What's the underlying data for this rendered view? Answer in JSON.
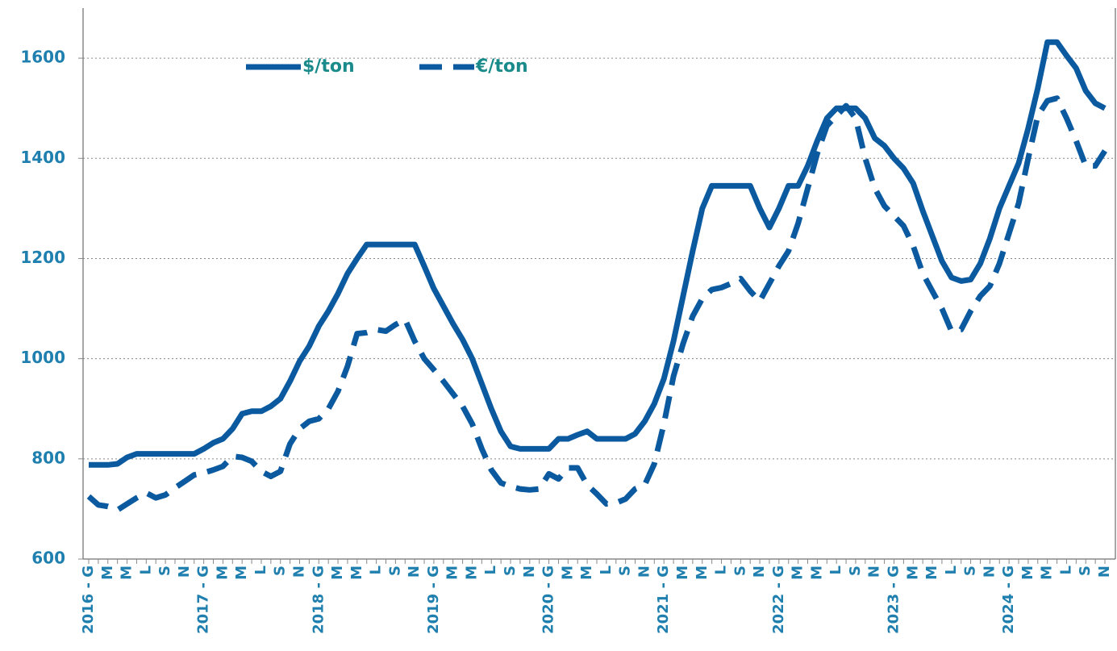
{
  "chart_data": {
    "type": "line",
    "categories": [
      "2016 - G",
      null,
      "M",
      null,
      "M",
      null,
      "L",
      null,
      "S",
      null,
      "N",
      null,
      "2017 - G",
      null,
      "M",
      null,
      "M",
      null,
      "L",
      null,
      "S",
      null,
      "N",
      null,
      "2018 - G",
      null,
      "M",
      null,
      "M",
      null,
      "L",
      null,
      "S",
      null,
      "N",
      null,
      "2019 - G",
      null,
      "M",
      null,
      "M",
      null,
      "L",
      null,
      "S",
      null,
      "N",
      null,
      "2020 - G",
      null,
      "M",
      null,
      "M",
      null,
      "L",
      null,
      "S",
      null,
      "N",
      null,
      "2021 - G",
      null,
      "M",
      null,
      "M",
      null,
      "L",
      null,
      "S",
      null,
      "N",
      null,
      "2022 - G",
      null,
      "M",
      null,
      "M",
      null,
      "L",
      null,
      "S",
      null,
      "N",
      null,
      "2023 - G",
      null,
      "M",
      null,
      "M",
      null,
      "L",
      null,
      "S",
      null,
      "N",
      null,
      "2024 - G",
      null,
      "M",
      null,
      "M",
      null,
      "L",
      null,
      "S",
      null,
      "N"
    ],
    "series": [
      {
        "name": "$/ton",
        "color": "#0b5aa0",
        "dash": "solid",
        "values": [
          788,
          788,
          788,
          790,
          803,
          810,
          810,
          810,
          810,
          810,
          810,
          810,
          820,
          832,
          840,
          860,
          890,
          895,
          895,
          905,
          920,
          955,
          995,
          1025,
          1065,
          1095,
          1130,
          1170,
          1200,
          1228,
          1228,
          1228,
          1228,
          1228,
          1228,
          1185,
          1140,
          1105,
          1070,
          1038,
          1000,
          950,
          900,
          855,
          825,
          820,
          820,
          820,
          820,
          840,
          840,
          848,
          855,
          840,
          840,
          840,
          840,
          850,
          875,
          910,
          960,
          1035,
          1125,
          1215,
          1300,
          1345,
          1345,
          1345,
          1345,
          1345,
          1300,
          1262,
          1300,
          1345,
          1345,
          1385,
          1435,
          1480,
          1500,
          1500,
          1500,
          1480,
          1440,
          1425,
          1400,
          1380,
          1350,
          1295,
          1245,
          1195,
          1162,
          1155,
          1158,
          1190,
          1240,
          1300,
          1345,
          1390,
          1460,
          1540,
          1632,
          1632,
          1605,
          1580,
          1535,
          1510,
          1500
        ]
      },
      {
        "name": "€/ton",
        "color": "#0b5aa0",
        "dash": "dashed",
        "values": [
          725,
          708,
          705,
          698,
          710,
          722,
          732,
          722,
          728,
          742,
          755,
          768,
          772,
          778,
          785,
          805,
          803,
          795,
          775,
          765,
          775,
          830,
          860,
          875,
          880,
          900,
          935,
          985,
          1050,
          1052,
          1058,
          1055,
          1068,
          1078,
          1035,
          1000,
          978,
          955,
          930,
          905,
          870,
          820,
          778,
          752,
          745,
          740,
          738,
          740,
          770,
          760,
          782,
          782,
          748,
          730,
          710,
          712,
          720,
          740,
          748,
          790,
          870,
          965,
          1030,
          1085,
          1120,
          1138,
          1142,
          1150,
          1160,
          1135,
          1115,
          1150,
          1185,
          1215,
          1270,
          1340,
          1410,
          1465,
          1485,
          1505,
          1480,
          1400,
          1340,
          1305,
          1285,
          1265,
          1225,
          1170,
          1135,
          1100,
          1055,
          1058,
          1095,
          1125,
          1145,
          1190,
          1250,
          1310,
          1400,
          1485,
          1515,
          1520,
          1480,
          1435,
          1385,
          1385,
          1415
        ]
      }
    ],
    "ylim": [
      600,
      1700
    ],
    "yticks": [
      600,
      800,
      1000,
      1200,
      1400,
      1600
    ],
    "grid": true
  }
}
